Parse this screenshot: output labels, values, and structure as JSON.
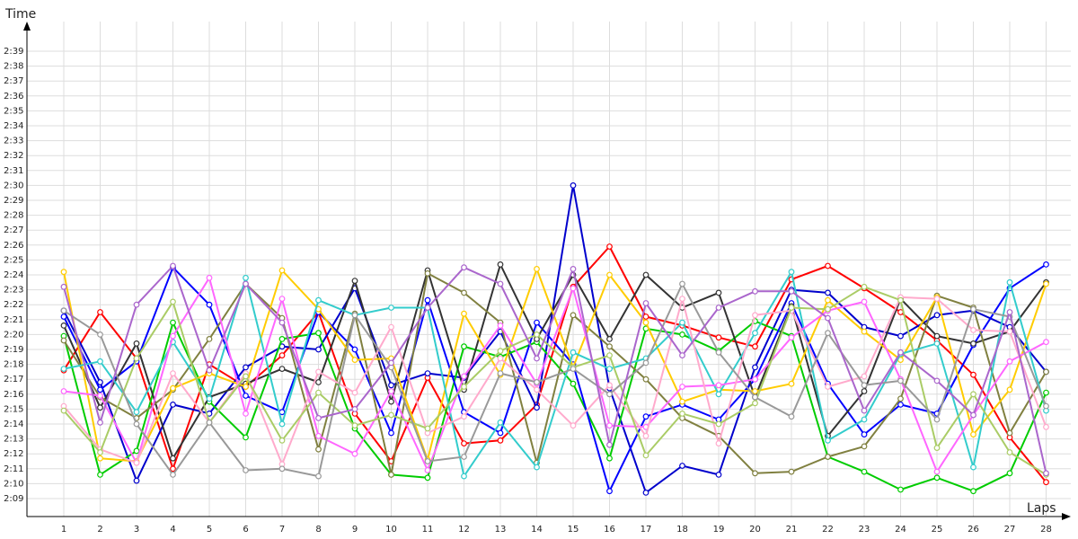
{
  "chart_data": {
    "type": "line",
    "title": "",
    "xlabel": "Laps",
    "ylabel": "Time",
    "x": [
      1,
      2,
      3,
      4,
      5,
      6,
      7,
      8,
      9,
      10,
      11,
      12,
      13,
      14,
      15,
      16,
      17,
      18,
      19,
      20,
      21,
      22,
      23,
      24,
      25,
      26,
      27,
      28
    ],
    "y_ticks": [
      "2:09",
      "2:10",
      "2:11",
      "2:12",
      "2:13",
      "2:14",
      "2:15",
      "2:16",
      "2:17",
      "2:18",
      "2:19",
      "2:20",
      "2:21",
      "2:22",
      "2:23",
      "2:24",
      "2:25",
      "2:26",
      "2:27",
      "2:28",
      "2:29",
      "2:30",
      "2:31",
      "2:32",
      "2:33",
      "2:34",
      "2:35",
      "2:36",
      "2:37",
      "2:38",
      "2:39"
    ],
    "ylim_seconds": [
      128,
      141
    ],
    "xlim": [
      0.2,
      28.3
    ],
    "grid": true,
    "legend": "none",
    "series": [
      {
        "color": "#ff0000",
        "values": [
          137.6,
          141.5,
          138.4,
          131,
          138,
          136.5,
          138.6,
          141.5,
          134.7,
          131.5,
          137.1,
          132.7,
          132.9,
          135.3,
          143.2,
          145.9,
          141.2,
          140.6,
          139.8,
          139.2,
          143.7,
          144.6,
          143.1,
          141.5,
          139.6,
          137.3,
          133.1,
          130.1
        ]
      },
      {
        "color": "#0000cc",
        "values": [
          141.6,
          136.8,
          130.2,
          135.3,
          134.7,
          137.8,
          139.2,
          139,
          143.1,
          136.6,
          137.4,
          137.1,
          140.2,
          135.1,
          150,
          136.4,
          129.4,
          131.2,
          130.6,
          137.8,
          143,
          142.8,
          140.5,
          139.9,
          141.3,
          141.6,
          140.5,
          137.5
        ]
      },
      {
        "color": "#00cc00",
        "values": [
          139.9,
          130.6,
          132.2,
          140.8,
          135.5,
          133.1,
          139.7,
          140.1,
          133.7,
          130.6,
          130.4,
          139.2,
          138.5,
          139.5,
          136.7,
          131.7,
          140.4,
          140,
          138.9,
          140.9,
          139.9,
          131.8,
          130.8,
          129.6,
          130.4,
          129.5,
          130.7,
          136.1
        ]
      },
      {
        "color": "#0000ff",
        "values": [
          141.2,
          136.3,
          138.2,
          144.5,
          142,
          135.9,
          134.8,
          141.5,
          139,
          133.4,
          142.3,
          134.8,
          133.4,
          140.8,
          138,
          129.5,
          134.5,
          135.3,
          134.3,
          137,
          142.1,
          136.7,
          133.3,
          135.3,
          134.7,
          139.3,
          143.1,
          144.7
        ]
      },
      {
        "color": "#333333",
        "values": [
          140.6,
          135.1,
          139.4,
          131.7,
          135.8,
          136.7,
          137.7,
          136.8,
          143.6,
          135.5,
          144.3,
          136.3,
          144.7,
          139.7,
          144,
          139.7,
          144,
          141.8,
          142.8,
          135.8,
          141.9,
          133.2,
          136.2,
          142.4,
          139.9,
          139.4,
          140.2,
          143.5
        ]
      },
      {
        "color": "#808040",
        "values": [
          139.6,
          135.8,
          134.4,
          136.3,
          139.7,
          143.4,
          141.1,
          132.3,
          141.4,
          130.6,
          144.1,
          142.8,
          140.8,
          131.4,
          141.3,
          139.2,
          137,
          134.4,
          133.2,
          130.7,
          130.8,
          131.8,
          132.5,
          135.7,
          142.6,
          141.8,
          133.4,
          137.5
        ]
      },
      {
        "color": "#ffcc00",
        "values": [
          144.2,
          131.7,
          131.5,
          136.4,
          137.4,
          136.5,
          144.3,
          141.7,
          138.3,
          138.4,
          131.6,
          141.4,
          137.3,
          144.4,
          137.8,
          144,
          140.8,
          135.5,
          136.3,
          136.2,
          136.7,
          142.3,
          140.2,
          138.3,
          142.5,
          133.3,
          136.3,
          143.4
        ]
      },
      {
        "color": "#33cccc",
        "values": [
          137.7,
          138.2,
          134.8,
          139.5,
          135.7,
          143.8,
          134,
          142.3,
          141.3,
          141.8,
          141.8,
          130.5,
          134.1,
          131.1,
          138.8,
          137.7,
          138.4,
          140.8,
          136,
          140.1,
          144.2,
          132.9,
          134.3,
          138.7,
          139.4,
          131.1,
          143.5,
          134.9
        ]
      },
      {
        "color": "#ff66ff",
        "values": [
          136.2,
          135.9,
          131.4,
          139.9,
          143.8,
          134.7,
          142.4,
          133.2,
          132,
          136.2,
          130.9,
          137.2,
          140.6,
          136.7,
          143.1,
          133.9,
          133.8,
          136.5,
          136.6,
          137,
          139.8,
          141.6,
          142.2,
          137,
          130.8,
          134.6,
          138.2,
          139.5
        ]
      },
      {
        "color": "#ffaacc",
        "values": [
          135.2,
          132.3,
          131.4,
          137.4,
          134.1,
          137.4,
          131.3,
          137.5,
          136.1,
          140.5,
          133.4,
          134.5,
          138.4,
          136.3,
          133.9,
          136.6,
          133.2,
          142.4,
          132.7,
          141.3,
          141.6,
          136.5,
          137.2,
          142.5,
          142.4,
          140.3,
          140.2,
          133.8
        ]
      },
      {
        "color": "#aacc66",
        "values": [
          134.9,
          132.1,
          138.4,
          142.2,
          134.1,
          137.2,
          132.9,
          136.1,
          133.9,
          134.6,
          133.7,
          136.5,
          138.9,
          140,
          137.8,
          138.6,
          131.9,
          134.7,
          134,
          135.4,
          141.8,
          141.7,
          143.2,
          142.3,
          132.4,
          136,
          132.1,
          130.6
        ]
      },
      {
        "color": "#999999",
        "values": [
          141.6,
          140,
          134,
          130.6,
          134.1,
          130.9,
          131,
          130.5,
          141.3,
          137.8,
          131.5,
          131.8,
          137.4,
          136.8,
          137.7,
          136,
          138.1,
          143.4,
          138.8,
          135.8,
          134.5,
          140.1,
          136.6,
          136.9,
          134.3,
          141.7,
          141.2,
          135.2
        ]
      },
      {
        "color": "#aa66cc",
        "values": [
          143.2,
          134.1,
          142,
          144.6,
          137.6,
          143.4,
          140.8,
          134.4,
          135,
          138.1,
          141.8,
          144.5,
          143.4,
          138.4,
          144.4,
          132.6,
          142.1,
          138.6,
          141.8,
          142.9,
          142.9,
          141.1,
          134.9,
          138.8,
          136.9,
          134.6,
          141.5,
          130.7
        ]
      }
    ]
  }
}
